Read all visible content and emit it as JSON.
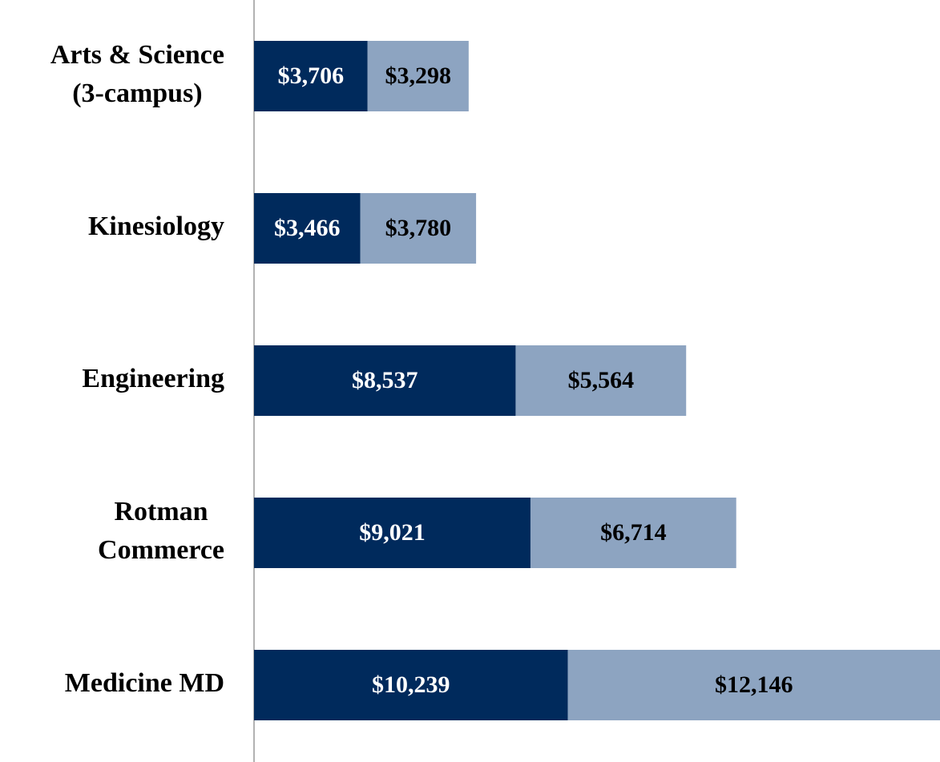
{
  "chart_data": {
    "type": "stacked-bar-horizontal",
    "categories": [
      [
        "Arts & Science",
        "(3-campus)"
      ],
      [
        "Kinesiology"
      ],
      [
        "Engineering"
      ],
      [
        "Rotman",
        "Commerce"
      ],
      [
        "Medicine MD"
      ]
    ],
    "series": [
      {
        "color": "#002a5c",
        "values": [
          3706,
          3466,
          8537,
          9021,
          10239
        ],
        "value_labels": [
          "$3,706",
          "$3,466",
          "$8,537",
          "$9,021",
          "$10,239"
        ],
        "label_color": "#ffffff"
      },
      {
        "color": "#8da4c1",
        "values": [
          3298,
          3780,
          5564,
          6714,
          12146
        ],
        "value_labels": [
          "$3,298",
          "$3,780",
          "$5,564",
          "$6,714",
          "$12,146"
        ],
        "label_color": "#000000"
      }
    ],
    "xlim": [
      0,
      22385
    ]
  }
}
